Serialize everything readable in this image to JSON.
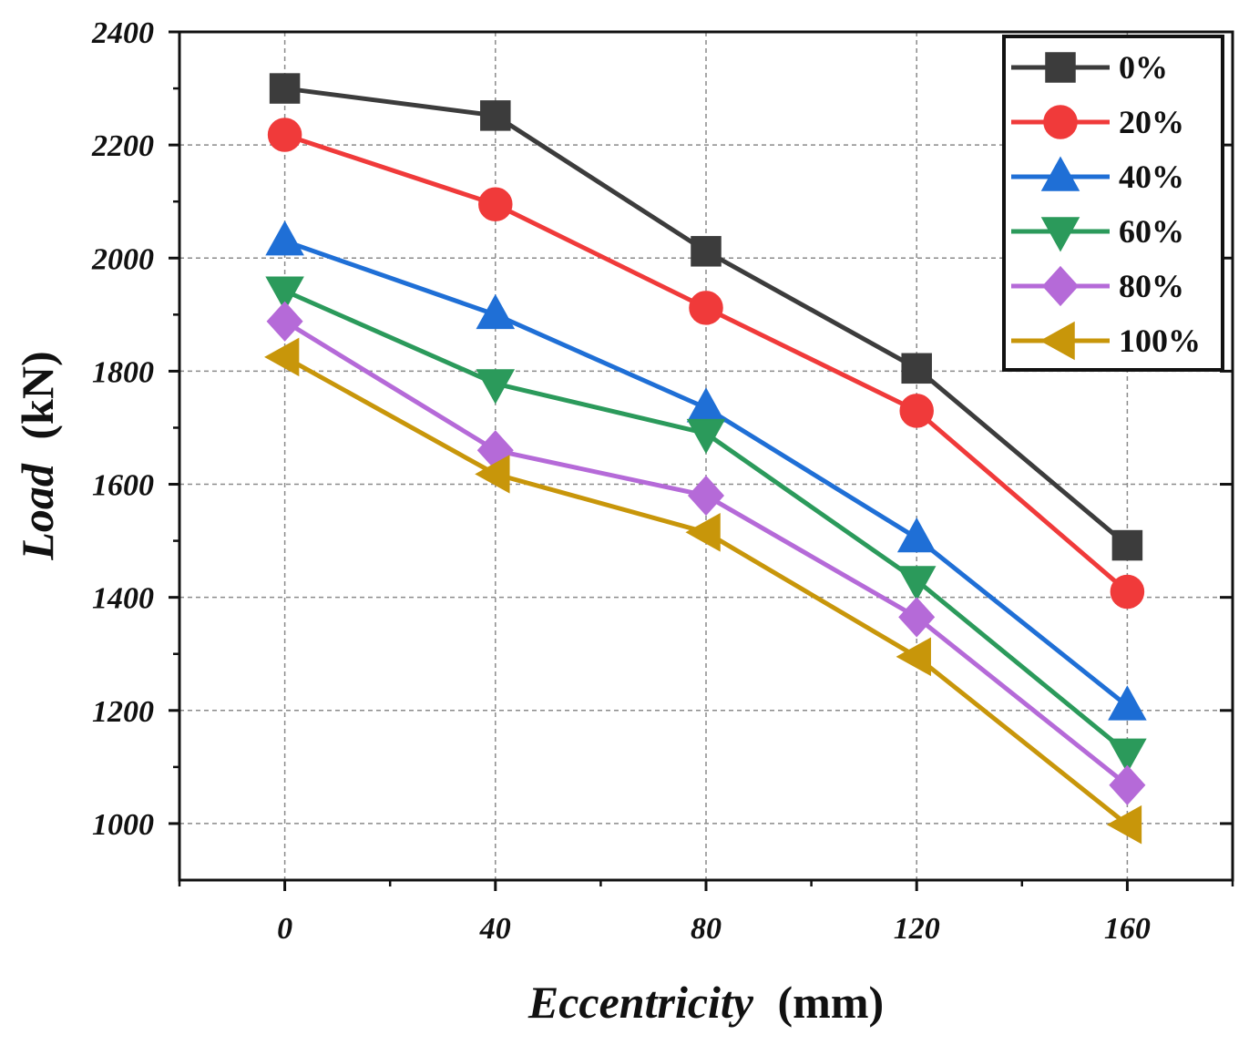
{
  "chart_data": {
    "type": "line",
    "xlabel_italic": "Eccentricity",
    "xlabel_unit": "(mm)",
    "ylabel_italic": "Load",
    "ylabel_unit": "(kN)",
    "x": [
      0,
      40,
      80,
      120,
      160
    ],
    "x_tick_labels": [
      "0",
      "40",
      "80",
      "120",
      "160"
    ],
    "y_tick_labels": [
      "1000",
      "1200",
      "1400",
      "1600",
      "1800",
      "2000",
      "2200",
      "2400"
    ],
    "xlim": [
      -20,
      180
    ],
    "ylim": [
      900,
      2400
    ],
    "grid": true,
    "legend_position": "top-right",
    "series": [
      {
        "name": "0%",
        "color": "#3c3c3c",
        "marker": "square",
        "values": [
          2300,
          2252,
          2012,
          1805,
          1492
        ]
      },
      {
        "name": "20%",
        "color": "#f03a3a",
        "marker": "circle",
        "values": [
          2218,
          2095,
          1912,
          1730,
          1410
        ]
      },
      {
        "name": "40%",
        "color": "#1f6fd6",
        "marker": "triangle-up",
        "values": [
          2030,
          1900,
          1735,
          1505,
          1208
        ]
      },
      {
        "name": "60%",
        "color": "#2b9a5b",
        "marker": "triangle-down",
        "values": [
          1942,
          1778,
          1690,
          1430,
          1125
        ]
      },
      {
        "name": "80%",
        "color": "#b56ad8",
        "marker": "diamond",
        "values": [
          1888,
          1660,
          1580,
          1365,
          1068
        ]
      },
      {
        "name": "100%",
        "color": "#c8960a",
        "marker": "triangle-left",
        "values": [
          1825,
          1618,
          1515,
          1295,
          998
        ]
      }
    ]
  }
}
